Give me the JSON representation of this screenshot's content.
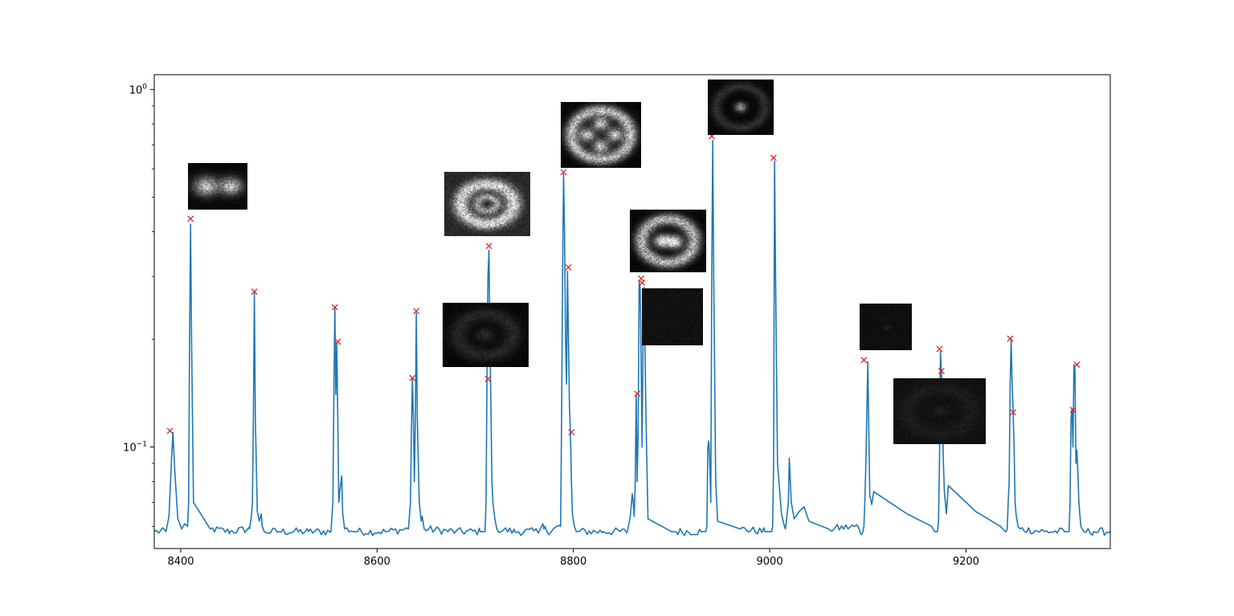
{
  "chart_data": {
    "type": "line",
    "title": "",
    "xlabel": "",
    "ylabel": "",
    "xlim": [
      8373,
      9347
    ],
    "ylim": [
      0.052,
      1.1
    ],
    "y_scale": "log",
    "grid": false,
    "x_ticks": [
      8400,
      8600,
      8800,
      9000,
      9200
    ],
    "x_tick_labels": [
      "8400",
      "8600",
      "8800",
      "9000",
      "9200"
    ],
    "y_ticks": [
      1.0,
      0.1
    ],
    "y_tick_labels": [
      {
        "base": "10",
        "exp": "0"
      },
      {
        "base": "10",
        "exp": "−1"
      }
    ],
    "baseline": 0.058,
    "series": [
      {
        "style": "line",
        "color": "#1f77b4",
        "x": [
          8373,
          8385,
          8388,
          8390,
          8392,
          8394,
          8397,
          8401,
          8404,
          8407,
          8408,
          8409,
          8410,
          8411,
          8413,
          8430,
          8450,
          8470,
          8472,
          8473,
          8474,
          8475,
          8476,
          8478,
          8480,
          8482,
          8483,
          8485,
          8500,
          8530,
          8553,
          8555,
          8556,
          8557,
          8558,
          8559,
          8560,
          8561,
          8562,
          8564,
          8565,
          8567,
          8580,
          8610,
          8632,
          8634,
          8635,
          8636,
          8637,
          8638,
          8639,
          8640,
          8641,
          8643,
          8645,
          8646,
          8648,
          8680,
          8705,
          8710,
          8711,
          8712,
          8713,
          8714,
          8715,
          8716,
          8717,
          8718,
          8720,
          8722,
          8740,
          8765,
          8769,
          8770,
          8771,
          8773,
          8787,
          8788,
          8789,
          8790,
          8791,
          8792,
          8793,
          8794,
          8795,
          8796,
          8797,
          8798,
          8799,
          8801,
          8803,
          8830,
          8855,
          8858,
          8860,
          8861,
          8862,
          8863,
          8864,
          8865,
          8866,
          8867,
          8868,
          8869,
          8870,
          8871,
          8872,
          8874,
          8876,
          8900,
          8930,
          8935,
          8936,
          8937,
          8938,
          8939,
          8940,
          8941,
          8942,
          8943,
          8945,
          8947,
          8970,
          8995,
          9000,
          9002,
          9003,
          9004,
          9005,
          9006,
          9008,
          9012,
          9015,
          9016,
          9017,
          9019,
          9020,
          9022,
          9025,
          9030,
          9035,
          9040,
          9060,
          9090,
          9093,
          9094,
          9095,
          9096,
          9097,
          9098,
          9100,
          9101,
          9102,
          9104,
          9106,
          9140,
          9165,
          9168,
          9170,
          9171,
          9172,
          9173,
          9174,
          9175,
          9176,
          9177,
          9178,
          9180,
          9182,
          9210,
          9235,
          9240,
          9241,
          9242,
          9243,
          9244,
          9245,
          9246,
          9247,
          9248,
          9249,
          9250,
          9251,
          9253,
          9255,
          9280,
          9300,
          9305,
          9306,
          9307,
          9308,
          9309,
          9310,
          9311,
          9312,
          9313,
          9314,
          9315,
          9317,
          9320,
          9330,
          9347
        ],
        "y": [
          0.058,
          0.058,
          0.064,
          0.085,
          0.11,
          0.085,
          0.063,
          0.059,
          0.061,
          0.06,
          0.07,
          0.2,
          0.42,
          0.2,
          0.07,
          0.059,
          0.058,
          0.059,
          0.064,
          0.07,
          0.12,
          0.27,
          0.12,
          0.066,
          0.062,
          0.065,
          0.06,
          0.058,
          0.058,
          0.058,
          0.058,
          0.07,
          0.14,
          0.245,
          0.14,
          0.195,
          0.12,
          0.07,
          0.075,
          0.083,
          0.065,
          0.059,
          0.058,
          0.058,
          0.059,
          0.07,
          0.11,
          0.155,
          0.12,
          0.08,
          0.12,
          0.237,
          0.12,
          0.07,
          0.062,
          0.064,
          0.059,
          0.058,
          0.058,
          0.058,
          0.07,
          0.154,
          0.3,
          0.355,
          0.2,
          0.13,
          0.08,
          0.07,
          0.063,
          0.059,
          0.058,
          0.058,
          0.061,
          0.059,
          0.06,
          0.058,
          0.06,
          0.12,
          0.3,
          0.58,
          0.4,
          0.2,
          0.15,
          0.31,
          0.2,
          0.13,
          0.11,
          0.08,
          0.065,
          0.06,
          0.058,
          0.058,
          0.058,
          0.064,
          0.074,
          0.07,
          0.064,
          0.08,
          0.14,
          0.08,
          0.11,
          0.29,
          0.28,
          0.18,
          0.1,
          0.2,
          0.28,
          0.12,
          0.063,
          0.058,
          0.058,
          0.058,
          0.06,
          0.1,
          0.104,
          0.09,
          0.07,
          0.3,
          0.72,
          0.3,
          0.08,
          0.062,
          0.059,
          0.058,
          0.058,
          0.058,
          0.06,
          0.09,
          0.63,
          0.3,
          0.09,
          0.065,
          0.06,
          0.059,
          0.062,
          0.07,
          0.093,
          0.07,
          0.063,
          0.066,
          0.068,
          0.062,
          0.059,
          0.06,
          0.057,
          0.057,
          0.058,
          0.06,
          0.071,
          0.09,
          0.173,
          0.11,
          0.073,
          0.069,
          0.075,
          0.065,
          0.06,
          0.058,
          0.058,
          0.058,
          0.062,
          0.09,
          0.185,
          0.16,
          0.12,
          0.09,
          0.075,
          0.065,
          0.078,
          0.066,
          0.06,
          0.058,
          0.058,
          0.059,
          0.07,
          0.08,
          0.15,
          0.2,
          0.15,
          0.127,
          0.1,
          0.07,
          0.065,
          0.06,
          0.059,
          0.058,
          0.058,
          0.058,
          0.07,
          0.12,
          0.128,
          0.1,
          0.17,
          0.165,
          0.09,
          0.098,
          0.085,
          0.07,
          0.06,
          0.058,
          0.058,
          0.058
        ]
      },
      {
        "style": "markers",
        "marker": "x",
        "color": "#d62728",
        "x": [
          8389,
          8410,
          8475,
          8557,
          8560,
          8636,
          8640,
          8713,
          8714,
          8790,
          8795,
          8798,
          8865,
          8869,
          8870,
          8941,
          9004,
          9096,
          9173,
          9175,
          9245,
          9248,
          9309,
          9313
        ],
        "y": [
          0.111,
          0.435,
          0.272,
          0.246,
          0.197,
          0.156,
          0.24,
          0.155,
          0.365,
          0.587,
          0.318,
          0.11,
          0.141,
          0.296,
          0.288,
          0.74,
          0.644,
          0.175,
          0.188,
          0.163,
          0.201,
          0.125,
          0.127,
          0.17
        ]
      }
    ],
    "insets": [
      {
        "name": "inset-two-lobe",
        "pattern": "two-lobe",
        "brightness": 0.85
      },
      {
        "name": "inset-ring",
        "pattern": "ring",
        "brightness": 0.85
      },
      {
        "name": "inset-faint-ring",
        "pattern": "faint-ring",
        "brightness": 0.4
      },
      {
        "name": "inset-four-lobe-ring",
        "pattern": "four-lobe-ring",
        "brightness": 0.85
      },
      {
        "name": "inset-two-spot-ring",
        "pattern": "two-spot-ring",
        "brightness": 0.95
      },
      {
        "name": "inset-noise-a",
        "pattern": "noise",
        "brightness": 0.3
      },
      {
        "name": "inset-center-spot",
        "pattern": "center-spot",
        "brightness": 0.6
      },
      {
        "name": "inset-noise-b",
        "pattern": "noise-dot",
        "brightness": 0.3
      },
      {
        "name": "inset-faint-ring-b",
        "pattern": "faint-ring-noise",
        "brightness": 0.3
      }
    ]
  }
}
